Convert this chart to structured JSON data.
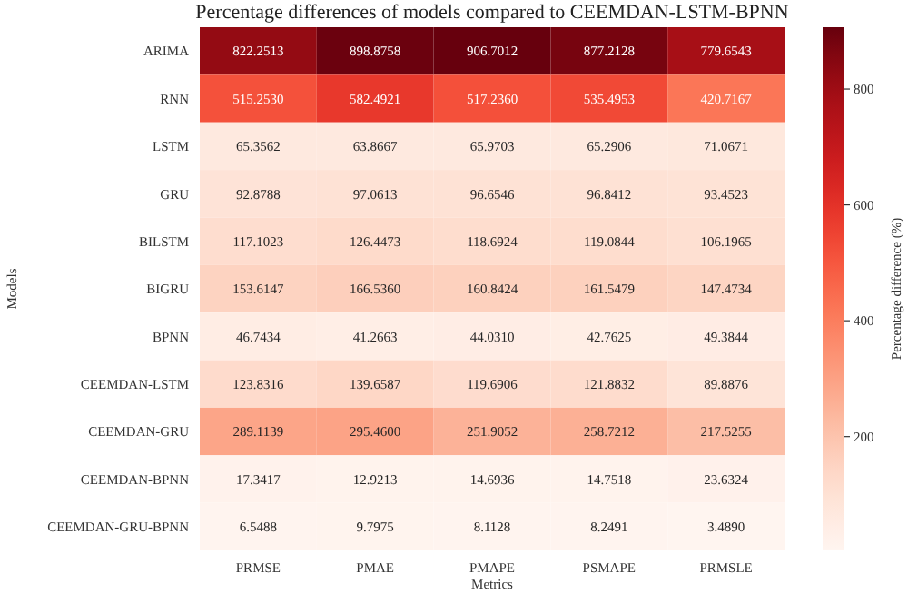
{
  "chart_data": {
    "type": "heatmap",
    "title": "Percentage differences of models compared to CEEMDAN-LSTM-BPNN",
    "xlabel": "Metrics",
    "ylabel": "Models",
    "clabel": "Percentage difference (%)",
    "categories": [
      "PRMSE",
      "PMAE",
      "PMAPE",
      "PSMAPE",
      "PRMSLE"
    ],
    "y_categories": [
      "ARIMA",
      "RNN",
      "LSTM",
      "GRU",
      "BILSTM",
      "BIGRU",
      "BPNN",
      "CEEMDAN-LSTM",
      "CEEMDAN-GRU",
      "CEEMDAN-BPNN",
      "CEEMDAN-GRU-BPNN"
    ],
    "cells": [
      [
        822.2513,
        898.8758,
        906.7012,
        877.2128,
        779.6543
      ],
      [
        515.253,
        582.4921,
        517.236,
        535.4953,
        420.7167
      ],
      [
        65.3562,
        63.8667,
        65.9703,
        65.2906,
        71.0671
      ],
      [
        92.8788,
        97.0613,
        96.6546,
        96.8412,
        93.4523
      ],
      [
        117.1023,
        126.4473,
        118.6924,
        119.0844,
        106.1965
      ],
      [
        153.6147,
        166.536,
        160.8424,
        161.5479,
        147.4734
      ],
      [
        46.7434,
        41.2663,
        44.031,
        42.7625,
        49.3844
      ],
      [
        123.8316,
        139.6587,
        119.6906,
        121.8832,
        89.8876
      ],
      [
        289.1139,
        295.46,
        251.9052,
        258.7212,
        217.5255
      ],
      [
        17.3417,
        12.9213,
        14.6936,
        14.7518,
        23.6324
      ],
      [
        6.5488,
        9.7975,
        8.1128,
        8.2491,
        3.489
      ]
    ],
    "cell_labels": [
      [
        "822.2513",
        "898.8758",
        "906.7012",
        "877.2128",
        "779.6543"
      ],
      [
        "515.2530",
        "582.4921",
        "517.2360",
        "535.4953",
        "420.7167"
      ],
      [
        "65.3562",
        "63.8667",
        "65.9703",
        "65.2906",
        "71.0671"
      ],
      [
        "92.8788",
        "97.0613",
        "96.6546",
        "96.8412",
        "93.4523"
      ],
      [
        "117.1023",
        "126.4473",
        "118.6924",
        "119.0844",
        "106.1965"
      ],
      [
        "153.6147",
        "166.5360",
        "160.8424",
        "161.5479",
        "147.4734"
      ],
      [
        "46.7434",
        "41.2663",
        "44.0310",
        "42.7625",
        "49.3844"
      ],
      [
        "123.8316",
        "139.6587",
        "119.6906",
        "121.8832",
        "89.8876"
      ],
      [
        "289.1139",
        "295.4600",
        "251.9052",
        "258.7212",
        "217.5255"
      ],
      [
        "17.3417",
        "12.9213",
        "14.6936",
        "14.7518",
        "23.6324"
      ],
      [
        "6.5488",
        "9.7975",
        "8.1128",
        "8.2491",
        "3.4890"
      ]
    ],
    "clim": [
      3.489,
      906.7012
    ],
    "cticks": [
      200,
      400,
      600,
      800
    ]
  }
}
